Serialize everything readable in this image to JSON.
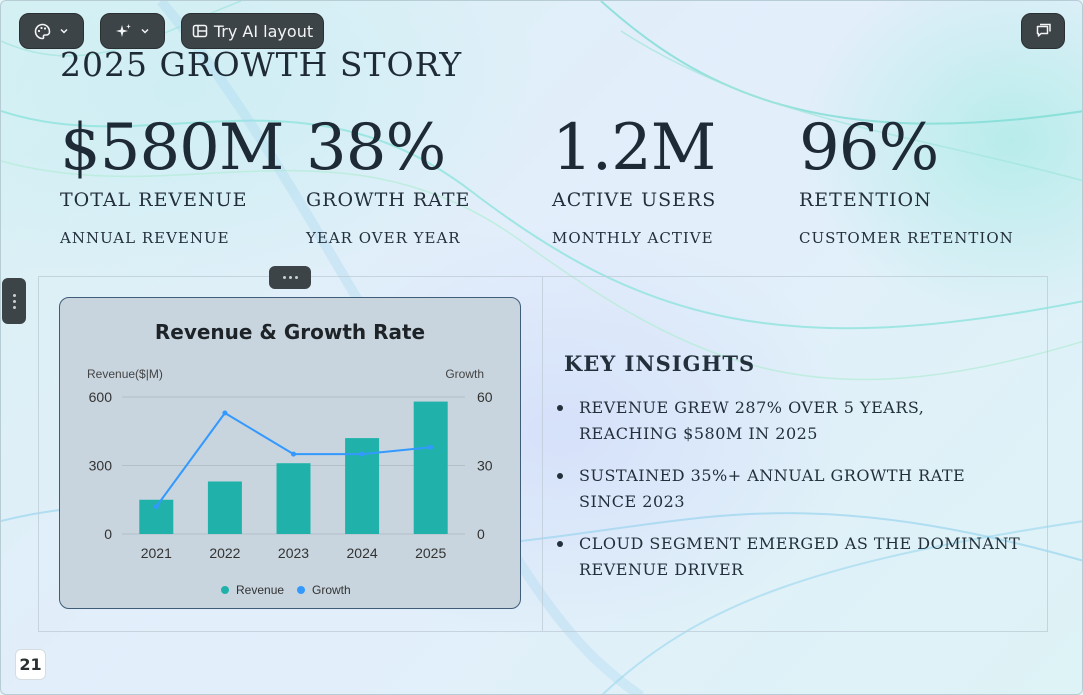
{
  "toolbar": {
    "theme_icon": "palette-icon",
    "magic_icon": "sparkles-icon",
    "ai_layout_icon": "layout-icon",
    "ai_layout_label": "Try AI layout",
    "comment_icon": "comment-icon"
  },
  "slide": {
    "title": "2025 Growth Story",
    "page_number": "21"
  },
  "stats": [
    {
      "value": "$580M",
      "label": "Total Revenue",
      "sub": "Annual Revenue"
    },
    {
      "value": "38%",
      "label": "Growth Rate",
      "sub": "Year over Year"
    },
    {
      "value": "1.2M",
      "label": "Active Users",
      "sub": "Monthly Active"
    },
    {
      "value": "96%",
      "label": "Retention",
      "sub": "Customer Retention"
    }
  ],
  "insights": {
    "heading": "Key Insights",
    "items": [
      "Revenue grew 287% over 5 years, reaching $580M in 2025",
      "Sustained 35%+ annual growth rate since 2023",
      "Cloud segment emerged as the dominant revenue driver"
    ]
  },
  "colors": {
    "bar": "#20b2aa",
    "line": "#3399ff",
    "text_dark": "#1e2a36"
  },
  "chart_data": {
    "type": "bar",
    "title": "Revenue & Growth Rate",
    "categories": [
      "2021",
      "2022",
      "2023",
      "2024",
      "2025"
    ],
    "series": [
      {
        "name": "Revenue",
        "type": "bar",
        "axis": "left",
        "values": [
          150,
          230,
          310,
          420,
          580
        ]
      },
      {
        "name": "Growth",
        "type": "line",
        "axis": "right",
        "values": [
          12,
          53,
          35,
          35,
          38
        ]
      }
    ],
    "ylabel_left": "Revenue($|M)",
    "ylabel_right": "Growth",
    "ylim_left": [
      0,
      600
    ],
    "yticks_left": [
      0,
      300,
      600
    ],
    "ylim_right": [
      0,
      60
    ],
    "yticks_right": [
      0,
      30,
      60
    ],
    "grid": true,
    "legend": "bottom"
  }
}
